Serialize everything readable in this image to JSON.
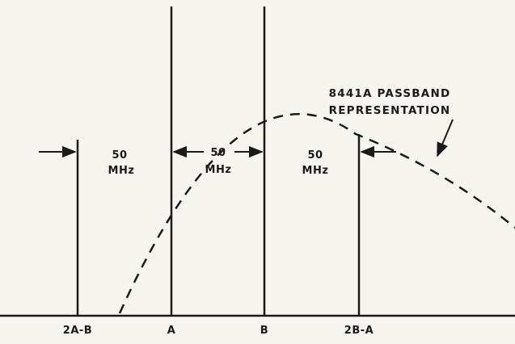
{
  "diagram": {
    "title_line1": "8441A PASSBAND",
    "title_line2": "REPRESENTATION",
    "axis_labels": {
      "two_a_minus_b": "2A-B",
      "a": "A",
      "b": "B",
      "two_b_minus_a": "2B-A"
    },
    "spacing_labels": [
      {
        "value": "50",
        "unit": "MHz"
      },
      {
        "value": "50",
        "unit": "MHz"
      },
      {
        "value": "50",
        "unit": "MHz"
      }
    ],
    "colors": {
      "ink": "#1a1a1a",
      "paper": "#f7f5ef"
    }
  }
}
